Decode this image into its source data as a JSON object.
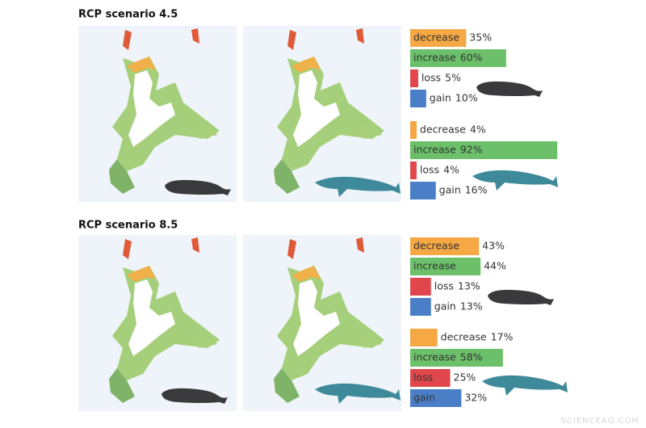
{
  "panels": [
    {
      "title": "RCP scenario 4.5",
      "groups": [
        {
          "bars": [
            {
              "label": "decrease",
              "value": 35,
              "value_label": "35%",
              "color": "#f5a843"
            },
            {
              "label": "increase",
              "value": 60,
              "value_label": "60%",
              "color": "#6cc06a"
            },
            {
              "label": "loss",
              "value": 5,
              "value_label": "5%",
              "color": "#e0474c"
            },
            {
              "label": "gain",
              "value": 10,
              "value_label": "10%",
              "color": "#4a7fc8"
            }
          ]
        },
        {
          "bars": [
            {
              "label": "decrease",
              "value": 4,
              "value_label": "4%",
              "color": "#f5a843"
            },
            {
              "label": "increase",
              "value": 92,
              "value_label": "92%",
              "color": "#6cc06a"
            },
            {
              "label": "loss",
              "value": 4,
              "value_label": "4%",
              "color": "#e0474c"
            },
            {
              "label": "gain",
              "value": 16,
              "value_label": "16%",
              "color": "#4a7fc8"
            }
          ]
        }
      ]
    },
    {
      "title": "RCP scenario 8.5",
      "groups": [
        {
          "bars": [
            {
              "label": "decrease",
              "value": 43,
              "value_label": "43%",
              "color": "#f5a843"
            },
            {
              "label": "increase",
              "value": 44,
              "value_label": "44%",
              "color": "#6cc06a"
            },
            {
              "label": "loss",
              "value": 13,
              "value_label": "13%",
              "color": "#e0474c"
            },
            {
              "label": "gain",
              "value": 13,
              "value_label": "13%",
              "color": "#4a7fc8"
            }
          ]
        },
        {
          "bars": [
            {
              "label": "decrease",
              "value": 17,
              "value_label": "17%",
              "color": "#f5a843"
            },
            {
              "label": "increase",
              "value": 58,
              "value_label": "58%",
              "color": "#6cc06a"
            },
            {
              "label": "loss",
              "value": 25,
              "value_label": "25%",
              "color": "#e0474c"
            },
            {
              "label": "gain",
              "value": 32,
              "value_label": "32%",
              "color": "#4a7fc8"
            }
          ]
        }
      ]
    }
  ],
  "watermark": "SCIENCEAQ.COM"
}
